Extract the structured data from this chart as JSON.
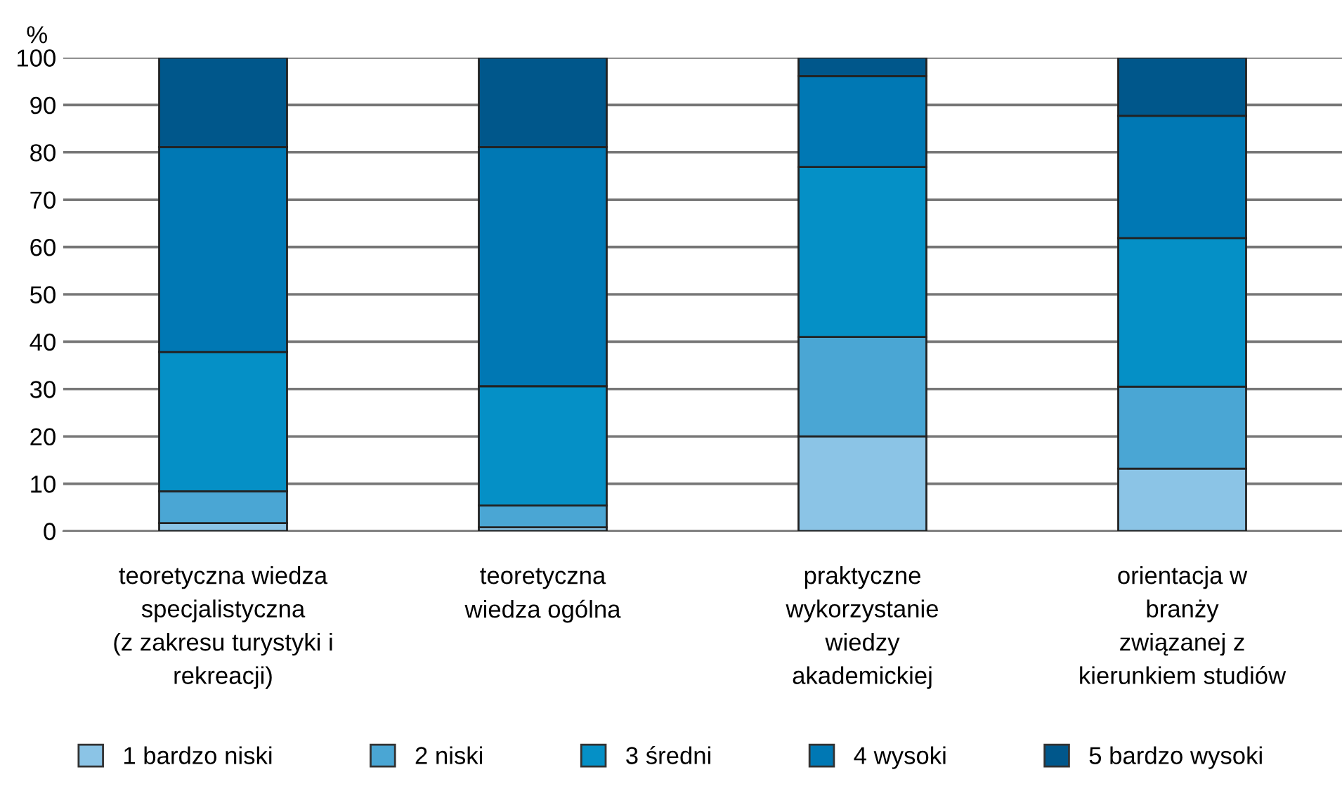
{
  "chart_data": {
    "type": "bar",
    "stacked": true,
    "ylabel": "%",
    "categories": [
      "teoretyczna wiedza\nspecjalistyczna\n(z zakresu turystyki i\nrekreacji)",
      "teoretyczna\nwiedza ogólna",
      "praktyczne\nwykorzystanie\nwiedzy\nakademickiej",
      "orientacja w\nbranży\nzwiązanej z\nkierunkiem studiów"
    ],
    "series": [
      {
        "name": "1 bardzo niski",
        "color": "#8bc4e6",
        "values": [
          1.7,
          0.8,
          20.0,
          13.2
        ]
      },
      {
        "name": "2 niski",
        "color": "#4aa6d4",
        "values": [
          6.7,
          4.6,
          21.0,
          17.3
        ]
      },
      {
        "name": "3 średni",
        "color": "#0590c6",
        "values": [
          29.4,
          25.2,
          35.9,
          31.4
        ]
      },
      {
        "name": "4 wysoki",
        "color": "#0078b4",
        "values": [
          43.3,
          50.5,
          19.2,
          25.8
        ]
      },
      {
        "name": "5 bardzo wysoki",
        "color": "#00578b",
        "values": [
          18.9,
          18.9,
          3.9,
          12.3
        ]
      }
    ],
    "ylim": [
      0,
      100
    ],
    "yticks": [
      0,
      10,
      20,
      30,
      40,
      50,
      60,
      70,
      80,
      90,
      100
    ],
    "grid": "y",
    "legend": "bottom"
  }
}
